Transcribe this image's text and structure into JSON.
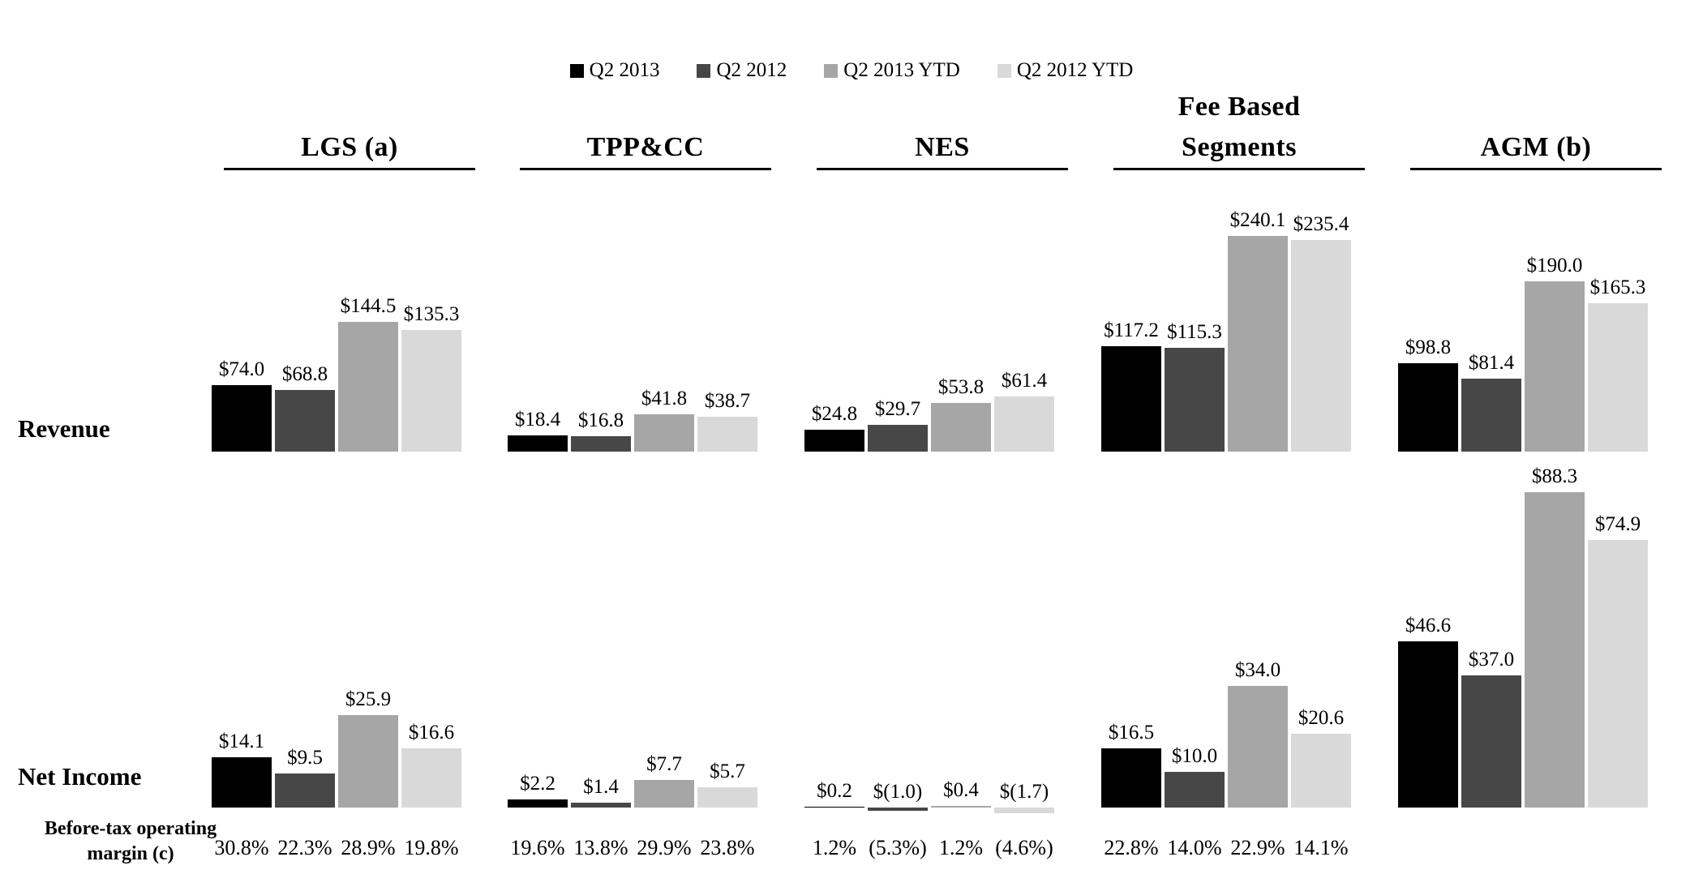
{
  "row_labels": {
    "revenue": "Revenue",
    "net_income": "Net Income",
    "margin_line1": "Before-tax operating",
    "margin_line2": "margin (c)"
  },
  "chart_data": {
    "type": "bar",
    "legend_position": "top",
    "grid": false,
    "value_prefix": "$",
    "series": [
      {
        "name": "Q2 2013",
        "color": "#000000"
      },
      {
        "name": "Q2 2012",
        "color": "#474747"
      },
      {
        "name": "Q2 2013 YTD",
        "color": "#a6a6a6"
      },
      {
        "name": "Q2 2012 YTD",
        "color": "#d9d9d9"
      }
    ],
    "rows": [
      {
        "key": "revenue",
        "label": "Revenue"
      },
      {
        "key": "net_income",
        "label": "Net Income"
      }
    ],
    "margin_row_label": "Before-tax operating margin (c)",
    "segments": [
      {
        "name": "LGS (a)",
        "header_lines": [
          "LGS (a)"
        ],
        "revenue": [
          74.0,
          68.8,
          144.5,
          135.3
        ],
        "revenue_labels": [
          "$74.0",
          "$68.8",
          "$144.5",
          "$135.3"
        ],
        "net_income": [
          14.1,
          9.5,
          25.9,
          16.6
        ],
        "net_income_labels": [
          "$14.1",
          "$9.5",
          "$25.9",
          "$16.6"
        ],
        "margins": [
          "30.8%",
          "22.3%",
          "28.9%",
          "19.8%"
        ]
      },
      {
        "name": "TPP&CC",
        "header_lines": [
          "TPP&CC"
        ],
        "revenue": [
          18.4,
          16.8,
          41.8,
          38.7
        ],
        "revenue_labels": [
          "$18.4",
          "$16.8",
          "$41.8",
          "$38.7"
        ],
        "net_income": [
          2.2,
          1.4,
          7.7,
          5.7
        ],
        "net_income_labels": [
          "$2.2",
          "$1.4",
          "$7.7",
          "$5.7"
        ],
        "margins": [
          "19.6%",
          "13.8%",
          "29.9%",
          "23.8%"
        ]
      },
      {
        "name": "NES",
        "header_lines": [
          "NES"
        ],
        "revenue": [
          24.8,
          29.7,
          53.8,
          61.4
        ],
        "revenue_labels": [
          "$24.8",
          "$29.7",
          "$53.8",
          "$61.4"
        ],
        "net_income": [
          0.2,
          -1.0,
          0.4,
          -1.7
        ],
        "net_income_labels": [
          "$0.2",
          "$(1.0)",
          "$0.4",
          "$(1.7)"
        ],
        "margins": [
          "1.2%",
          "(5.3%)",
          "1.2%",
          "(4.6%)"
        ]
      },
      {
        "name": "Fee Based Segments",
        "header_lines": [
          "Fee Based",
          "Segments"
        ],
        "revenue": [
          117.2,
          115.3,
          240.1,
          235.4
        ],
        "revenue_labels": [
          "$117.2",
          "$115.3",
          "$240.1",
          "$235.4"
        ],
        "net_income": [
          16.5,
          10.0,
          34.0,
          20.6
        ],
        "net_income_labels": [
          "$16.5",
          "$10.0",
          "$34.0",
          "$20.6"
        ],
        "margins": [
          "22.8%",
          "14.0%",
          "22.9%",
          "14.1%"
        ]
      },
      {
        "name": "AGM (b)",
        "header_lines": [
          "AGM (b)"
        ],
        "revenue": [
          98.8,
          81.4,
          190.0,
          165.3
        ],
        "revenue_labels": [
          "$98.8",
          "$81.4",
          "$190.0",
          "$165.3"
        ],
        "net_income": [
          46.6,
          37.0,
          88.3,
          74.9
        ],
        "net_income_labels": [
          "$46.6",
          "$37.0",
          "$88.3",
          "$74.9"
        ],
        "margins": null
      }
    ]
  }
}
